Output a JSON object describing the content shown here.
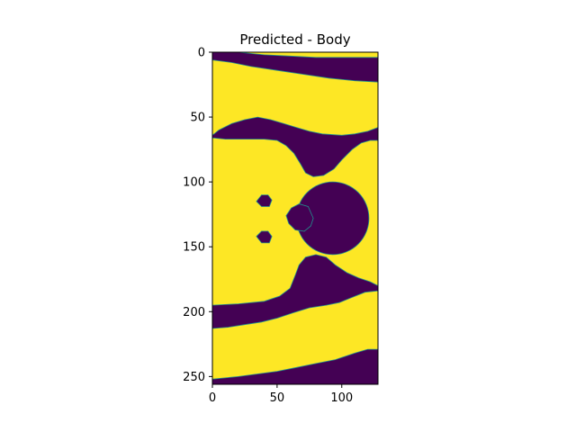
{
  "chart_data": {
    "type": "heatmap",
    "title": "Predicted - Body",
    "xlabel": "",
    "ylabel": "",
    "x_range": [
      0,
      128
    ],
    "y_range": [
      256,
      0
    ],
    "y_inverted": true,
    "x_ticks": [
      0,
      50,
      100
    ],
    "y_ticks": [
      0,
      50,
      100,
      150,
      200,
      250
    ],
    "colormap": "viridis",
    "values_present": [
      0,
      1
    ],
    "colors": {
      "0": "#440154",
      "1": "#fde725",
      "edge": "#21918c"
    },
    "grid": false,
    "legend": "none",
    "regions": {
      "top_band": [
        [
          0,
          0
        ],
        [
          20,
          0
        ],
        [
          40,
          2
        ],
        [
          60,
          3
        ],
        [
          80,
          4
        ],
        [
          100,
          4
        ],
        [
          128,
          4
        ],
        [
          128,
          23
        ],
        [
          110,
          22
        ],
        [
          90,
          20
        ],
        [
          70,
          17
        ],
        [
          50,
          14
        ],
        [
          30,
          11
        ],
        [
          15,
          8
        ],
        [
          0,
          6
        ]
      ],
      "upper_neck_band": [
        [
          0,
          66
        ],
        [
          0,
          64
        ],
        [
          5,
          60
        ],
        [
          15,
          55
        ],
        [
          25,
          52
        ],
        [
          35,
          50
        ],
        [
          45,
          52
        ],
        [
          55,
          55
        ],
        [
          65,
          58
        ],
        [
          75,
          61
        ],
        [
          85,
          63
        ],
        [
          100,
          64
        ],
        [
          110,
          63
        ],
        [
          120,
          61
        ],
        [
          128,
          58
        ],
        [
          128,
          68
        ],
        [
          122,
          68
        ],
        [
          115,
          70
        ],
        [
          108,
          75
        ],
        [
          100,
          83
        ],
        [
          94,
          90
        ],
        [
          86,
          95
        ],
        [
          78,
          96
        ],
        [
          72,
          93
        ],
        [
          68,
          86
        ],
        [
          63,
          78
        ],
        [
          57,
          72
        ],
        [
          50,
          68
        ],
        [
          40,
          67
        ],
        [
          25,
          67
        ],
        [
          10,
          67
        ]
      ],
      "lower_neck_band": [
        [
          0,
          213
        ],
        [
          0,
          195
        ],
        [
          20,
          194
        ],
        [
          40,
          192
        ],
        [
          52,
          188
        ],
        [
          60,
          182
        ],
        [
          64,
          172
        ],
        [
          67,
          164
        ],
        [
          72,
          158
        ],
        [
          80,
          156
        ],
        [
          88,
          158
        ],
        [
          95,
          164
        ],
        [
          104,
          170
        ],
        [
          113,
          174
        ],
        [
          122,
          177
        ],
        [
          128,
          180
        ],
        [
          128,
          184
        ],
        [
          118,
          185
        ],
        [
          108,
          189
        ],
        [
          98,
          193
        ],
        [
          88,
          195
        ],
        [
          75,
          197
        ],
        [
          62,
          201
        ],
        [
          50,
          205
        ],
        [
          38,
          208
        ],
        [
          25,
          210
        ],
        [
          12,
          212
        ]
      ],
      "bottom_band": [
        [
          0,
          256
        ],
        [
          0,
          252
        ],
        [
          20,
          250
        ],
        [
          35,
          248
        ],
        [
          50,
          246
        ],
        [
          65,
          243
        ],
        [
          80,
          240
        ],
        [
          95,
          237
        ],
        [
          110,
          232
        ],
        [
          120,
          229
        ],
        [
          128,
          229
        ],
        [
          128,
          256
        ]
      ],
      "center_circle": {
        "cx": 93,
        "cy": 128,
        "r": 28
      },
      "center_blob": [
        [
          78,
          128
        ],
        [
          74,
          119
        ],
        [
          67,
          117
        ],
        [
          61,
          120
        ],
        [
          57,
          126
        ],
        [
          59,
          132
        ],
        [
          64,
          137
        ],
        [
          71,
          138
        ],
        [
          76,
          134
        ]
      ],
      "upper_dot": [
        [
          38,
          110
        ],
        [
          43,
          110
        ],
        [
          46,
          114
        ],
        [
          44,
          119
        ],
        [
          38,
          119
        ],
        [
          34,
          115
        ]
      ],
      "lower_dot": [
        [
          38,
          138
        ],
        [
          43,
          138
        ],
        [
          46,
          142
        ],
        [
          44,
          147
        ],
        [
          38,
          147
        ],
        [
          34,
          142
        ]
      ]
    }
  }
}
